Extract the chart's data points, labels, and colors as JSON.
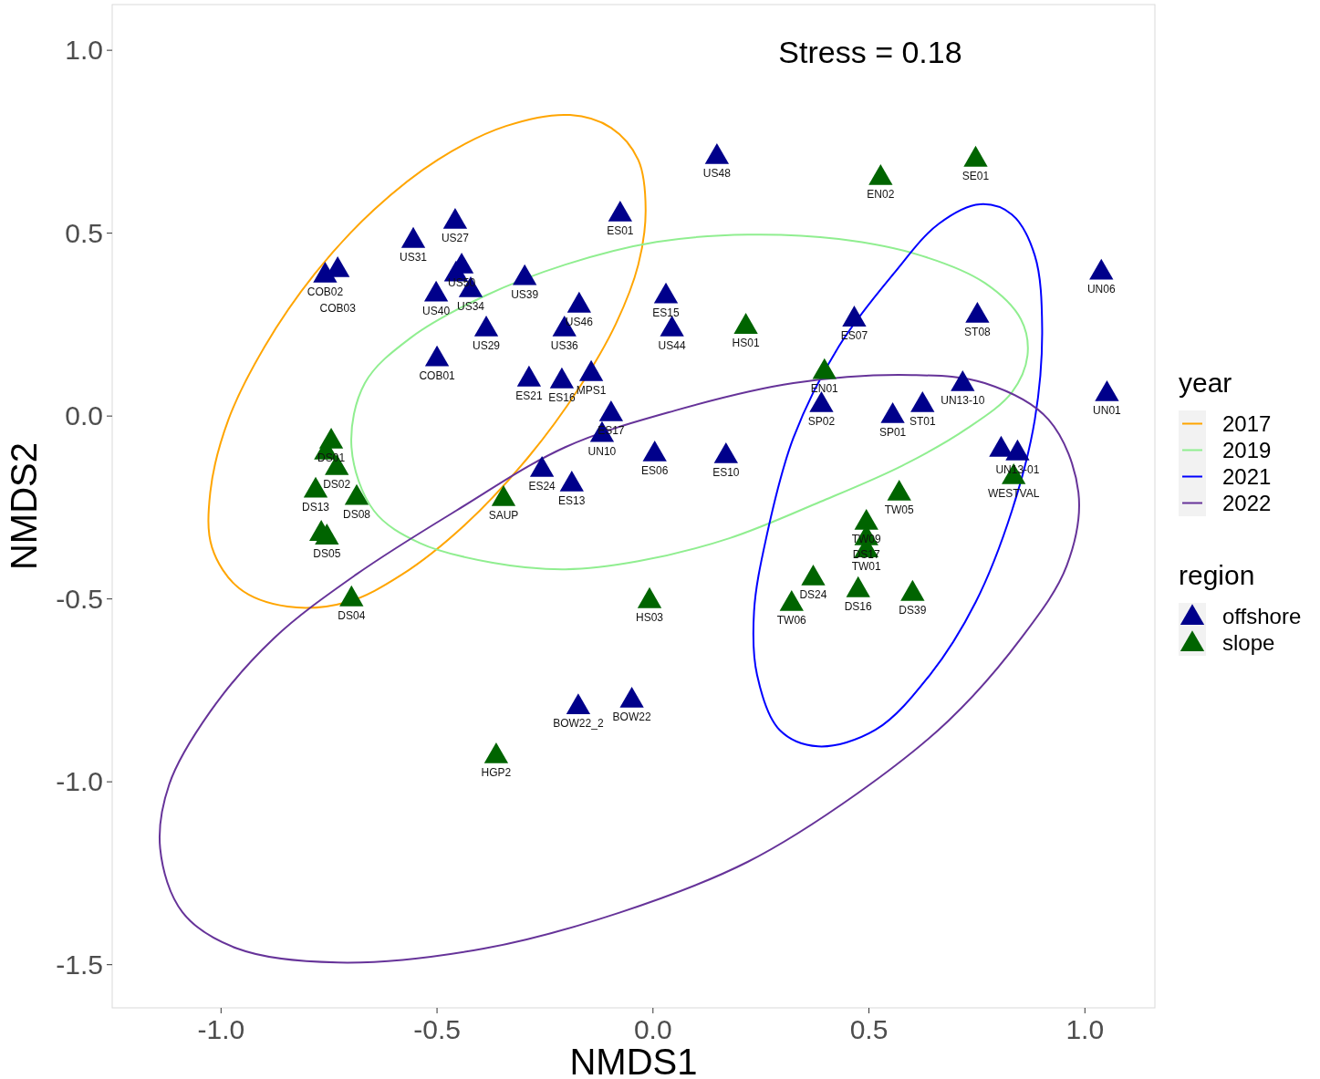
{
  "chart_data": {
    "type": "scatter",
    "xlabel": "NMDS1",
    "ylabel": "NMDS2",
    "xlim": [
      -1.252,
      1.162
    ],
    "ylim": [
      -1.618,
      1.125
    ],
    "xticks": [
      {
        "value": -1,
        "label": "-1.0"
      },
      {
        "value": -0.5,
        "label": "-0.5"
      },
      {
        "value": 0,
        "label": "0.0"
      },
      {
        "value": 0.5,
        "label": "0.5"
      },
      {
        "value": 1,
        "label": "1.0"
      }
    ],
    "yticks": [
      {
        "value": -1.5,
        "label": "-1.5"
      },
      {
        "value": -1,
        "label": "-1.0"
      },
      {
        "value": -0.5,
        "label": "-0.5"
      },
      {
        "value": 0,
        "label": "0.0"
      },
      {
        "value": 0.5,
        "label": "0.5"
      },
      {
        "value": 1,
        "label": "1.0"
      }
    ],
    "grid": false,
    "legend": "right",
    "legend_title": [
      "year",
      "region"
    ],
    "series": [
      {
        "name": "2017",
        "type": "line",
        "color": "#ffa500"
      },
      {
        "name": "2019",
        "type": "line",
        "color": "#90ee90"
      },
      {
        "name": "2021",
        "type": "line",
        "color": "#0000ff"
      },
      {
        "name": "2022",
        "type": "line",
        "color": "#663399"
      },
      {
        "name": "offshore",
        "marker": "triangle",
        "color": "#00008b",
        "x": [
          0.148,
          -0.076,
          -0.458,
          -0.555,
          -0.759,
          -0.73,
          -0.443,
          -0.456,
          -0.422,
          -0.502,
          -0.297,
          -0.171,
          -0.205,
          -0.386,
          -0.5,
          -0.287,
          -0.211,
          -0.143,
          0.03,
          0.044,
          -0.097,
          -0.118,
          -0.257,
          -0.188,
          0.004,
          0.169,
          0.466,
          0.39,
          0.555,
          0.624,
          0.717,
          0.751,
          1.038,
          1.051,
          0.806,
          0.844,
          -0.173,
          -0.049
        ],
        "values": [
          0.708,
          0.551,
          0.531,
          0.479,
          0.384,
          0.399,
          0.409,
          0.387,
          0.344,
          0.332,
          0.377,
          0.302,
          0.237,
          0.237,
          0.155,
          0.1,
          0.095,
          0.115,
          0.327,
          0.237,
          0.005,
          -0.052,
          -0.147,
          -0.187,
          -0.105,
          -0.11,
          0.264,
          0.03,
          0,
          0.03,
          0.087,
          0.274,
          0.392,
          0.06,
          -0.092,
          -0.102,
          -0.796,
          -0.778
        ]
      },
      {
        "name": "slope",
        "type": "scatter",
        "marker": "triangle",
        "color": "#006400",
        "x": [
          0.747,
          0.527,
          0.215,
          0.397,
          0.835,
          0.57,
          0.494,
          0.494,
          0.494,
          0.371,
          0.321,
          0.475,
          0.601,
          -0.008,
          -0.363,
          -0.346,
          -0.698,
          -0.745,
          -0.757,
          -0.732,
          -0.781,
          -0.686,
          -0.768,
          -0.755
        ],
        "values": [
          0.701,
          0.651,
          0.244,
          0.12,
          -0.167,
          -0.212,
          -0.292,
          -0.334,
          -0.367,
          -0.444,
          -0.514,
          -0.476,
          -0.486,
          -0.506,
          -0.93,
          -0.227,
          -0.501,
          -0.07,
          -0.1,
          -0.142,
          -0.204,
          -0.224,
          -0.322,
          -0.332
        ]
      }
    ],
    "annotations": [
      "Stress = 0.18",
      {
        "text": "US48",
        "x": 0.148,
        "y": 0.708
      },
      {
        "text": "ES01",
        "x": -0.076,
        "y": 0.551
      },
      {
        "text": "US27",
        "x": -0.458,
        "y": 0.531
      },
      {
        "text": "US31",
        "x": -0.555,
        "y": 0.479
      },
      {
        "text": "COB02",
        "x": -0.759,
        "y": 0.384
      },
      {
        "text": "COB03",
        "x": -0.73,
        "y": 0.399
      },
      {
        "text": "US50",
        "x": -0.443,
        "y": 0.409
      },
      {
        "text": "US34",
        "x": -0.422,
        "y": 0.344
      },
      {
        "text": "US40",
        "x": -0.502,
        "y": 0.332
      },
      {
        "text": "US39",
        "x": -0.297,
        "y": 0.377
      },
      {
        "text": "US46",
        "x": -0.171,
        "y": 0.302
      },
      {
        "text": "US36",
        "x": -0.205,
        "y": 0.237
      },
      {
        "text": "US29",
        "x": -0.386,
        "y": 0.237
      },
      {
        "text": "COB01",
        "x": -0.5,
        "y": 0.155
      },
      {
        "text": "ES21",
        "x": -0.287,
        "y": 0.1
      },
      {
        "text": "ES16",
        "x": -0.211,
        "y": 0.095
      },
      {
        "text": "MPS1",
        "x": -0.143,
        "y": 0.115
      },
      {
        "text": "ES15",
        "x": 0.03,
        "y": 0.327
      },
      {
        "text": "US44",
        "x": 0.044,
        "y": 0.237
      },
      {
        "text": "ES17",
        "x": -0.097,
        "y": 0.005
      },
      {
        "text": "UN10",
        "x": -0.118,
        "y": -0.052
      },
      {
        "text": "ES24",
        "x": -0.257,
        "y": -0.147
      },
      {
        "text": "ES13",
        "x": -0.188,
        "y": -0.187
      },
      {
        "text": "ES06",
        "x": 0.004,
        "y": -0.105
      },
      {
        "text": "ES10",
        "x": 0.169,
        "y": -0.11
      },
      {
        "text": "ES07",
        "x": 0.466,
        "y": 0.264
      },
      {
        "text": "SP02",
        "x": 0.39,
        "y": 0.03
      },
      {
        "text": "SP01",
        "x": 0.555,
        "y": 0
      },
      {
        "text": "ST01",
        "x": 0.624,
        "y": 0.03
      },
      {
        "text": "UN13-10",
        "x": 0.717,
        "y": 0.087
      },
      {
        "text": "ST08",
        "x": 0.751,
        "y": 0.274
      },
      {
        "text": "UN06",
        "x": 1.038,
        "y": 0.392
      },
      {
        "text": "UN01",
        "x": 1.051,
        "y": 0.06
      },
      {
        "text": "UN13-01",
        "x": 0.844,
        "y": -0.102
      },
      {
        "text": "BOW22_2",
        "x": -0.173,
        "y": -0.796
      },
      {
        "text": "BOW22",
        "x": -0.049,
        "y": -0.778
      },
      {
        "text": "SE01",
        "x": 0.747,
        "y": 0.701
      },
      {
        "text": "EN02",
        "x": 0.527,
        "y": 0.651
      },
      {
        "text": "HS01",
        "x": 0.215,
        "y": 0.244
      },
      {
        "text": "EN01",
        "x": 0.397,
        "y": 0.12
      },
      {
        "text": "WESTVAL",
        "x": 0.835,
        "y": -0.167
      },
      {
        "text": "TW05",
        "x": 0.57,
        "y": -0.212
      },
      {
        "text": "TW09",
        "x": 0.494,
        "y": -0.292
      },
      {
        "text": "DS17",
        "x": 0.494,
        "y": -0.334
      },
      {
        "text": "TW01",
        "x": 0.494,
        "y": -0.367
      },
      {
        "text": "DS24",
        "x": 0.371,
        "y": -0.444
      },
      {
        "text": "TW06",
        "x": 0.321,
        "y": -0.514
      },
      {
        "text": "DS16",
        "x": 0.475,
        "y": -0.476
      },
      {
        "text": "DS39",
        "x": 0.601,
        "y": -0.486
      },
      {
        "text": "HS03",
        "x": -0.008,
        "y": -0.506
      },
      {
        "text": "HGP2",
        "x": -0.363,
        "y": -0.93
      },
      {
        "text": "SAUP",
        "x": -0.346,
        "y": -0.227
      },
      {
        "text": "DS04",
        "x": -0.698,
        "y": -0.501
      },
      {
        "text": "DS01",
        "x": -0.745,
        "y": -0.07
      },
      {
        "text": "DS02",
        "x": -0.732,
        "y": -0.142
      },
      {
        "text": "DS13",
        "x": -0.781,
        "y": -0.204
      },
      {
        "text": "DS08",
        "x": -0.686,
        "y": -0.224
      },
      {
        "text": "DS05",
        "x": -0.755,
        "y": -0.332
      }
    ]
  }
}
